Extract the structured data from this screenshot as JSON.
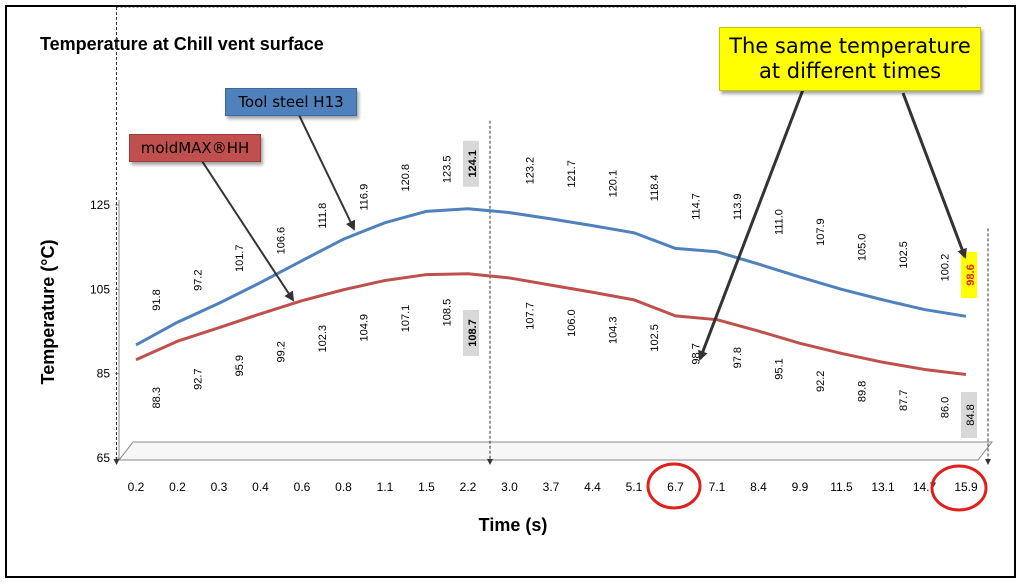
{
  "chart_data": {
    "type": "line",
    "title": "Temperature at Chill vent surface",
    "xlabel": "Time (s)",
    "ylabel": "Temperature (°C)",
    "ylim": [
      65,
      125
    ],
    "yticks": [
      "125",
      "105",
      "85",
      "65"
    ],
    "categories": [
      "0.2",
      "0.2",
      "0.3",
      "0.4",
      "0.6",
      "0.8",
      "1.1",
      "1.5",
      "2.2",
      "3.0",
      "3.7",
      "4.4",
      "5.1",
      "6.7",
      "7.1",
      "8.4",
      "9.9",
      "11.5",
      "13.1",
      "14.7",
      "15.9"
    ],
    "series": [
      {
        "name": "Tool steel H13",
        "color": "#4f81bd",
        "values": [
          91.8,
          97.2,
          101.7,
          106.6,
          111.8,
          116.9,
          120.8,
          123.5,
          124.1,
          123.2,
          121.7,
          120.1,
          118.4,
          114.7,
          113.9,
          111.0,
          107.9,
          105.0,
          102.5,
          100.2,
          98.6
        ],
        "labels": [
          "91.8",
          "97.2",
          "101.7",
          "106.6",
          "111.8",
          "116.9",
          "120.8",
          "123.5",
          "124.1",
          "123.2",
          "121.7",
          "120.1",
          "118.4",
          "114.7",
          "113.9",
          "111.0",
          "107.9",
          "105.0",
          "102.5",
          "100.2",
          "98.6"
        ]
      },
      {
        "name": "moldMAX®HH",
        "color": "#c0504d",
        "values": [
          88.3,
          92.7,
          95.9,
          99.2,
          102.3,
          104.9,
          107.1,
          108.5,
          108.7,
          107.7,
          106.0,
          104.3,
          102.5,
          98.7,
          97.8,
          95.1,
          92.2,
          89.8,
          87.7,
          86.0,
          84.8
        ],
        "labels": [
          "88.3",
          "92.7",
          "95.9",
          "99.2",
          "102.3",
          "104.9",
          "107.1",
          "108.5",
          "108.7",
          "107.7",
          "106.0",
          "104.3",
          "102.5",
          "98.7",
          "97.8",
          "95.1",
          "92.2",
          "89.8",
          "87.7",
          "86.0",
          "84.8"
        ]
      }
    ],
    "highlight_color": "#ffff00",
    "marker_color": "#d8d8d8",
    "circle_color": "#e0201c",
    "callout_text": [
      "The same temperature",
      "at different times"
    ]
  }
}
